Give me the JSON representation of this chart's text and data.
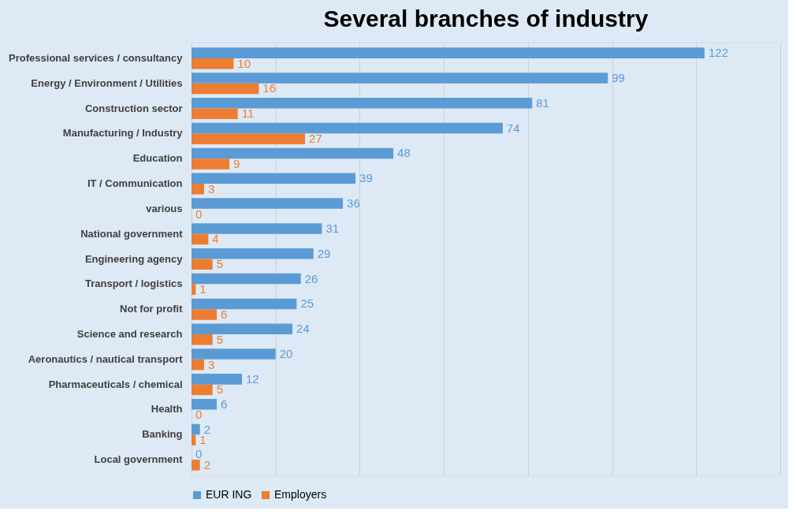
{
  "chart_data": {
    "type": "bar",
    "orientation": "horizontal",
    "title": "Several branches of industry",
    "categories": [
      "Professional services / consultancy",
      "Energy / Environment / Utilities",
      "Construction sector",
      "Manufacturing / Industry",
      "Education",
      "IT / Communication",
      "various",
      "National government",
      "Engineering agency",
      "Transport / logistics",
      "Not for profit",
      "Science and research",
      "Aeronautics / nautical transport",
      "Pharmaceuticals / chemical",
      "Health",
      "Banking",
      "Local government"
    ],
    "series": [
      {
        "name": "EUR ING",
        "color": "#5b9bd5",
        "values": [
          122,
          99,
          81,
          74,
          48,
          39,
          36,
          31,
          29,
          26,
          25,
          24,
          20,
          12,
          6,
          2,
          0
        ]
      },
      {
        "name": "Employers",
        "color": "#ed7d31",
        "values": [
          10,
          16,
          11,
          27,
          9,
          3,
          0,
          4,
          5,
          1,
          6,
          5,
          3,
          5,
          0,
          1,
          2
        ]
      }
    ],
    "xlim": [
      0,
      140
    ],
    "xticks": [
      0,
      20,
      40,
      60,
      80,
      100,
      120,
      140
    ],
    "grid": "x",
    "tick_labels": "y",
    "legend": "bottom",
    "data_labels": true
  }
}
